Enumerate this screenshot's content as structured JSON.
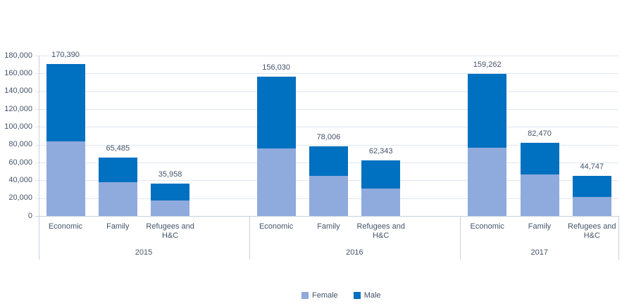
{
  "colors": {
    "background": "#FFFFFF",
    "female_series": "#8FAADC",
    "male_series": "#0070C0",
    "gridline": "#DFE6F0",
    "axis_line": "#C6D0DE",
    "text": "#44546A"
  },
  "chart_data": {
    "type": "bar",
    "stacked": true,
    "title": "",
    "xlabel": "",
    "ylabel": "",
    "grid": true,
    "ylim": [
      0,
      180000
    ],
    "ytick_step": 20000,
    "ytick_labels": [
      "0",
      "20,000",
      "40,000",
      "60,000",
      "80,000",
      "100,000",
      "120,000",
      "140,000",
      "160,000",
      "180,000"
    ],
    "groups": [
      "2015",
      "2016",
      "2017"
    ],
    "categories": [
      "Economic",
      "Family",
      "Refugees and H&C"
    ],
    "category_labels_per_bar": [
      "Economic",
      "Family",
      "Refugees and H&C",
      "Economic",
      "Family",
      "Refugees and H&C",
      "Economic",
      "Family",
      "Refugees and H&C"
    ],
    "series": [
      {
        "name": "Female",
        "color": "#8FAADC",
        "values": [
          84000,
          38000,
          17400,
          76000,
          45000,
          30500,
          76600,
          46500,
          21300
        ]
      },
      {
        "name": "Male",
        "color": "#0070C0",
        "values": [
          86390,
          27485,
          18558,
          80030,
          33006,
          31843,
          82662,
          35970,
          23447
        ]
      }
    ],
    "totals": [
      170390,
      65485,
      35958,
      156030,
      78006,
      62343,
      159262,
      82470,
      44747
    ],
    "total_labels": [
      "170,390",
      "65,485",
      "35,958",
      "156,030",
      "78,006",
      "62,343",
      "159,262",
      "82,470",
      "44,747"
    ],
    "legend": {
      "position": "bottom-center",
      "entries": [
        "Female",
        "Male"
      ]
    }
  }
}
